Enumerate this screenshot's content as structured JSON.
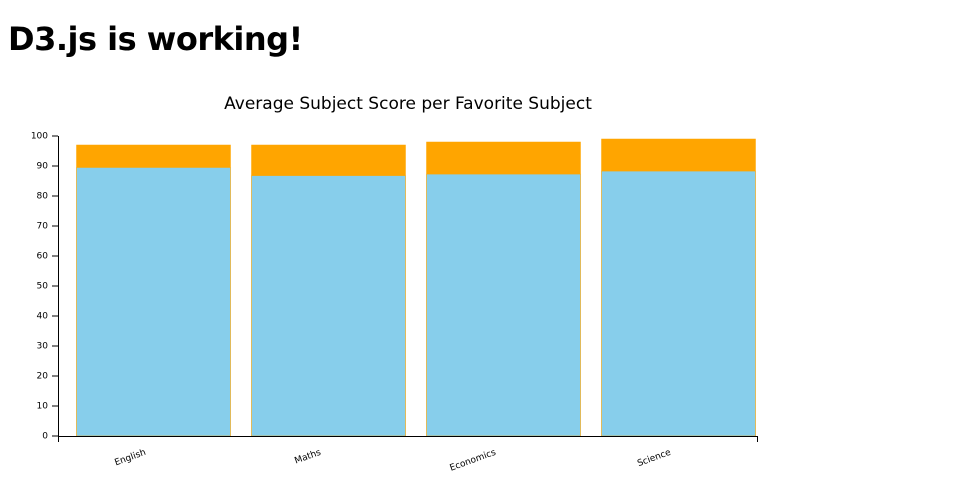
{
  "header": {
    "title": "D3.js is working!"
  },
  "chart_data": {
    "type": "bar",
    "barmode": "overlay",
    "title": "Average Subject Score per Favorite Subject",
    "categories": [
      "English",
      "Maths",
      "Economics",
      "Science"
    ],
    "series": [
      {
        "color": "orange",
        "values": [
          97,
          97,
          98,
          99
        ]
      },
      {
        "color": "skyblue",
        "values": [
          89.5,
          86.8,
          87.3,
          88.3
        ]
      }
    ],
    "ylim": [
      0,
      100
    ],
    "yticks": [
      0,
      10,
      20,
      30,
      40,
      50,
      60,
      70,
      80,
      90,
      100
    ]
  }
}
